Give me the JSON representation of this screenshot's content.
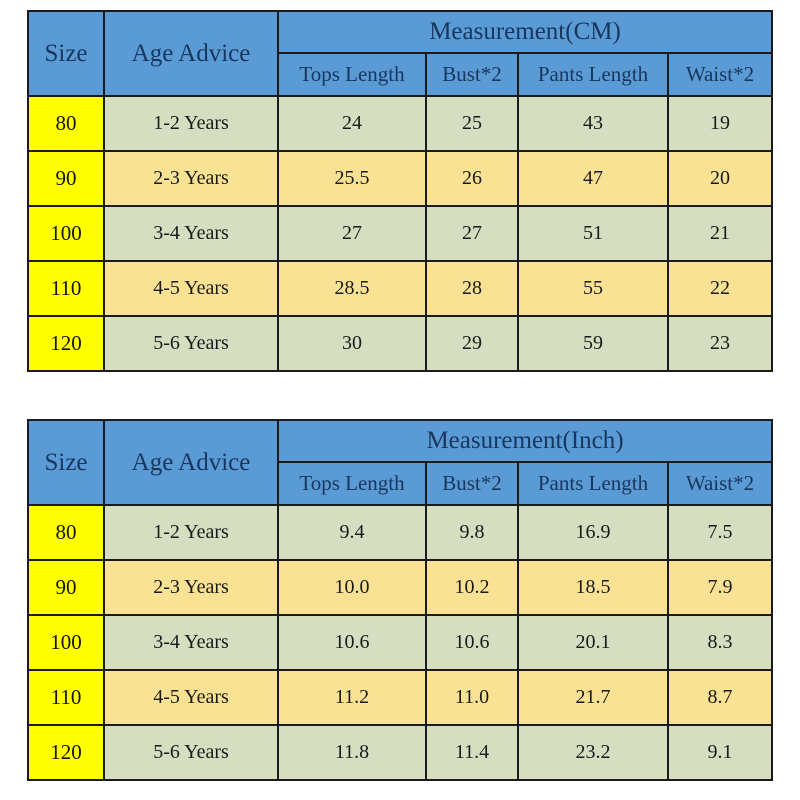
{
  "colors": {
    "header_blue": "#5b9bd5",
    "header_text_navy": "#17375e",
    "size_column_yellow": "#ffff00",
    "row_green": "#d6dec1",
    "row_tan": "#fae294",
    "border": "#1b1b1b",
    "background": "#ffffff"
  },
  "chart_data": [
    {
      "type": "table",
      "title": "Measurement(CM)",
      "merged_columns": [
        "Size",
        "Age Advice"
      ],
      "group_header": "Measurement(CM)",
      "sub_columns": [
        "Tops Length",
        "Bust*2",
        "Pants Length",
        "Waist*2"
      ],
      "rows": [
        [
          "80",
          "1-2 Years",
          "24",
          "25",
          "43",
          "19"
        ],
        [
          "90",
          "2-3 Years",
          "25.5",
          "26",
          "47",
          "20"
        ],
        [
          "100",
          "3-4 Years",
          "27",
          "27",
          "51",
          "21"
        ],
        [
          "110",
          "4-5 Years",
          "28.5",
          "28",
          "55",
          "22"
        ],
        [
          "120",
          "5-6 Years",
          "30",
          "29",
          "59",
          "23"
        ]
      ]
    },
    {
      "type": "table",
      "title": "Measurement(Inch)",
      "merged_columns": [
        "Size",
        "Age Advice"
      ],
      "group_header": "Measurement(Inch)",
      "sub_columns": [
        "Tops Length",
        "Bust*2",
        "Pants Length",
        "Waist*2"
      ],
      "rows": [
        [
          "80",
          "1-2 Years",
          "9.4",
          "9.8",
          "16.9",
          "7.5"
        ],
        [
          "90",
          "2-3 Years",
          "10.0",
          "10.2",
          "18.5",
          "7.9"
        ],
        [
          "100",
          "3-4 Years",
          "10.6",
          "10.6",
          "20.1",
          "8.3"
        ],
        [
          "110",
          "4-5 Years",
          "11.2",
          "11.0",
          "21.7",
          "8.7"
        ],
        [
          "120",
          "5-6 Years",
          "11.8",
          "11.4",
          "23.2",
          "9.1"
        ]
      ]
    }
  ]
}
